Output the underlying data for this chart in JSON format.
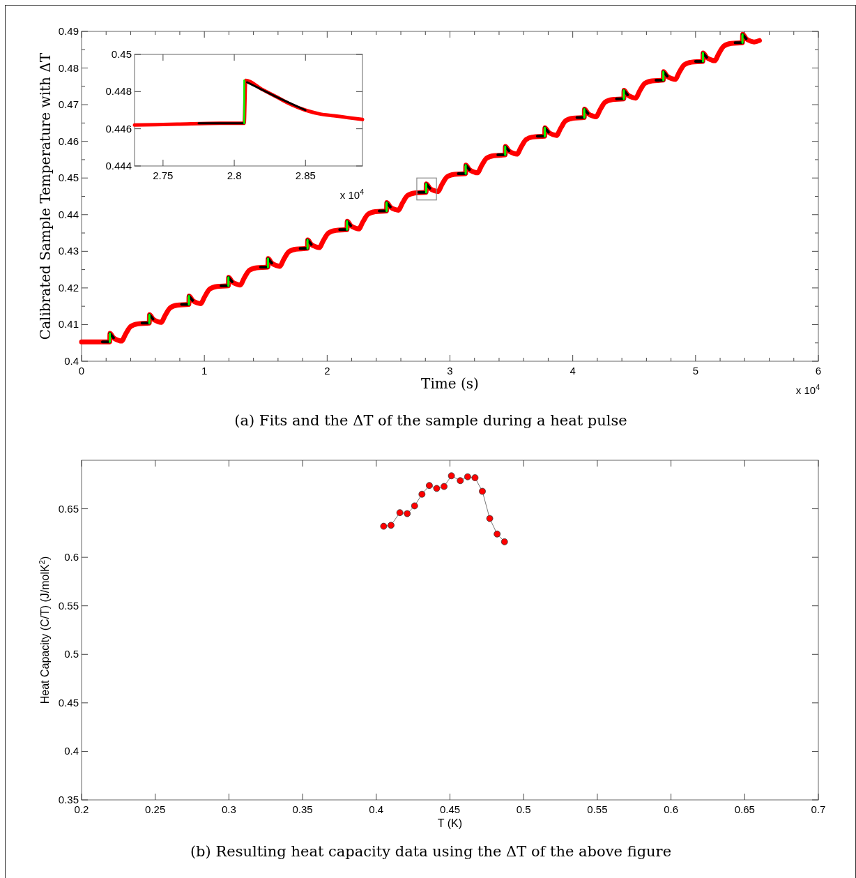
{
  "chart_data": [
    {
      "type": "line",
      "xlabel": "Time (s)",
      "ylabel": "Calibrated Sample Temperature with ΔT",
      "annotations": [
        "x 10$^{4}$",
        "(a) Fits and the ΔT of the sample during a heat pulse"
      ],
      "xlim": [
        0,
        6
      ],
      "ylim": [
        0.4,
        0.49
      ],
      "xticks": [
        0,
        {
          "value": 0.2,
          "label": null
        },
        {
          "value": 0.4,
          "label": null
        },
        {
          "value": 0.6,
          "label": null
        },
        {
          "value": 0.8,
          "label": null
        },
        1,
        {
          "value": 1.2,
          "label": null
        },
        {
          "value": 1.4,
          "label": null
        },
        {
          "value": 1.6,
          "label": null
        },
        {
          "value": 1.8,
          "label": null
        },
        2,
        {
          "value": 2.2,
          "label": null
        },
        {
          "value": 2.4,
          "label": null
        },
        {
          "value": 2.6,
          "label": null
        },
        {
          "value": 2.8,
          "label": null
        },
        3,
        {
          "value": 3.2,
          "label": null
        },
        {
          "value": 3.4,
          "label": null
        },
        {
          "value": 3.6,
          "label": null
        },
        {
          "value": 3.8,
          "label": null
        },
        4,
        {
          "value": 4.2,
          "label": null
        },
        {
          "value": 4.4,
          "label": null
        },
        {
          "value": 4.6,
          "label": null
        },
        {
          "value": 4.8,
          "label": null
        },
        5,
        {
          "value": 5.2,
          "label": null
        },
        {
          "value": 5.4,
          "label": null
        },
        {
          "value": 5.6,
          "label": null
        },
        {
          "value": 5.8,
          "label": null
        },
        6
      ],
      "yticks": [
        0.4,
        {
          "value": 0.405,
          "label": null
        },
        0.41,
        {
          "value": 0.415,
          "label": null
        },
        0.42,
        {
          "value": 0.425,
          "label": null
        },
        0.43,
        {
          "value": 0.435,
          "label": null
        },
        0.44,
        {
          "value": 0.445,
          "label": null
        },
        0.45,
        {
          "value": 0.455,
          "label": null
        },
        0.46,
        {
          "value": 0.465,
          "label": null
        },
        0.47,
        {
          "value": 0.475,
          "label": null
        },
        0.48,
        {
          "value": 0.485,
          "label": null
        },
        0.49
      ],
      "series": [
        {
          "color": "#ff0000",
          "x": [
            0,
            0.23,
            0.231,
            0.26,
            0.3,
            0.325,
            0.36,
            0.4,
            0.46,
            0.552,
            0.553,
            0.582,
            0.622,
            0.647,
            0.682,
            0.722,
            0.782,
            0.874,
            0.875,
            0.904,
            0.944,
            0.969,
            1.004,
            1.044,
            1.104,
            1.196,
            1.197,
            1.226,
            1.266,
            1.291,
            1.326,
            1.366,
            1.426,
            1.518,
            1.519,
            1.548,
            1.588,
            1.613,
            1.648,
            1.688,
            1.748,
            1.84,
            1.841,
            1.87,
            1.91,
            1.935,
            1.97,
            2.01,
            2.07,
            2.162,
            2.163,
            2.192,
            2.232,
            2.257,
            2.292,
            2.332,
            2.392,
            2.484,
            2.485,
            2.514,
            2.554,
            2.579,
            2.614,
            2.654,
            2.714,
            2.806,
            2.807,
            2.836,
            2.876,
            2.901,
            2.936,
            2.976,
            3.036,
            3.128,
            3.129,
            3.158,
            3.198,
            3.223,
            3.258,
            3.298,
            3.358,
            3.45,
            3.451,
            3.48,
            3.52,
            3.545,
            3.58,
            3.62,
            3.68,
            3.772,
            3.773,
            3.802,
            3.842,
            3.867,
            3.902,
            3.942,
            4.002,
            4.094,
            4.095,
            4.124,
            4.164,
            4.189,
            4.224,
            4.264,
            4.324,
            4.416,
            4.417,
            4.446,
            4.486,
            4.511,
            4.546,
            4.586,
            4.646,
            4.738,
            4.739,
            4.768,
            4.808,
            4.833,
            4.868,
            4.908,
            4.968,
            5.06,
            5.061,
            5.09,
            5.13,
            5.155,
            5.19,
            5.23,
            5.29,
            5.382,
            5.383,
            5.412,
            5.452,
            5.477,
            5.52
          ],
          "values": [
            0.4053,
            0.4053,
            0.4076,
            0.4064,
            0.4057,
            0.4055,
            0.4075,
            0.4095,
            0.4102,
            0.4104,
            0.4127,
            0.4115,
            0.4108,
            0.4106,
            0.4126,
            0.4146,
            0.4153,
            0.4155,
            0.4178,
            0.4166,
            0.4159,
            0.4157,
            0.4177,
            0.4197,
            0.4204,
            0.4206,
            0.4229,
            0.4217,
            0.421,
            0.4208,
            0.4228,
            0.4248,
            0.4255,
            0.4257,
            0.428,
            0.4268,
            0.4261,
            0.4259,
            0.4279,
            0.4299,
            0.4306,
            0.4308,
            0.4331,
            0.4319,
            0.4312,
            0.431,
            0.433,
            0.435,
            0.4357,
            0.4359,
            0.4382,
            0.437,
            0.4363,
            0.4361,
            0.4381,
            0.4401,
            0.4408,
            0.441,
            0.4433,
            0.4421,
            0.4414,
            0.4412,
            0.4432,
            0.4452,
            0.4459,
            0.4461,
            0.4484,
            0.4472,
            0.4465,
            0.4463,
            0.4483,
            0.4503,
            0.451,
            0.4512,
            0.4535,
            0.4523,
            0.4516,
            0.4514,
            0.4534,
            0.4554,
            0.4561,
            0.4563,
            0.4586,
            0.4574,
            0.4567,
            0.4565,
            0.4585,
            0.4605,
            0.4612,
            0.4614,
            0.4637,
            0.4625,
            0.4618,
            0.4616,
            0.4636,
            0.4656,
            0.4663,
            0.4665,
            0.4688,
            0.4676,
            0.4669,
            0.4667,
            0.4687,
            0.4707,
            0.4714,
            0.4716,
            0.4739,
            0.4727,
            0.472,
            0.4718,
            0.4738,
            0.4758,
            0.4765,
            0.4767,
            0.479,
            0.4778,
            0.4771,
            0.4769,
            0.4789,
            0.4809,
            0.4816,
            0.4818,
            0.4841,
            0.4829,
            0.4822,
            0.482,
            0.484,
            0.486,
            0.4867,
            0.4869,
            0.4892,
            0.488,
            0.4873,
            0.4871,
            0.4875
          ]
        },
        {
          "color": "#000000",
          "x": [
            0.17,
            0.23,
            null,
            0.23,
            0.26,
            null,
            0.492,
            0.552,
            null,
            0.552,
            0.582,
            null,
            0.814,
            0.874,
            null,
            0.874,
            0.904,
            null,
            1.136,
            1.196,
            null,
            1.196,
            1.226,
            null,
            1.458,
            1.518,
            null,
            1.518,
            1.548,
            null,
            1.78,
            1.84,
            null,
            1.84,
            1.87,
            null,
            2.102,
            2.162,
            null,
            2.162,
            2.192,
            null,
            2.424,
            2.484,
            null,
            2.484,
            2.514,
            null,
            2.746,
            2.806,
            null,
            2.806,
            2.836,
            null,
            3.068,
            3.128,
            null,
            3.128,
            3.158,
            null,
            3.39,
            3.45,
            null,
            3.45,
            3.48,
            null,
            3.712,
            3.772,
            null,
            3.772,
            3.802,
            null,
            4.034,
            4.094,
            null,
            4.094,
            4.124,
            null,
            4.356,
            4.416,
            null,
            4.416,
            4.446,
            null,
            4.678,
            4.738,
            null,
            4.738,
            4.768,
            null,
            5.0,
            5.06,
            null,
            5.06,
            5.09,
            null,
            5.322,
            5.382,
            null,
            5.382,
            5.412
          ],
          "values": [
            0.4053,
            0.4053,
            null,
            0.4076,
            0.4064,
            null,
            0.4104,
            0.4104,
            null,
            0.4127,
            0.4115,
            null,
            0.4155,
            0.4155,
            null,
            0.4178,
            0.4166,
            null,
            0.4206,
            0.4206,
            null,
            0.4229,
            0.4217,
            null,
            0.4257,
            0.4257,
            null,
            0.428,
            0.4268,
            null,
            0.4308,
            0.4308,
            null,
            0.4331,
            0.4319,
            null,
            0.4359,
            0.4359,
            null,
            0.4382,
            0.437,
            null,
            0.441,
            0.441,
            null,
            0.4433,
            0.4421,
            null,
            0.4461,
            0.4461,
            null,
            0.4484,
            0.4472,
            null,
            0.4512,
            0.4512,
            null,
            0.4535,
            0.4523,
            null,
            0.4563,
            0.4563,
            null,
            0.4586,
            0.4574,
            null,
            0.4614,
            0.4614,
            null,
            0.4637,
            0.4625,
            null,
            0.4665,
            0.4665,
            null,
            0.4688,
            0.4676,
            null,
            0.4716,
            0.4716,
            null,
            0.4739,
            0.4727,
            null,
            0.4767,
            0.4767,
            null,
            0.479,
            0.4778,
            null,
            0.4818,
            0.4818,
            null,
            0.4841,
            0.4829,
            null,
            0.4869,
            0.4869,
            null,
            0.4892,
            0.488
          ]
        },
        {
          "color": "#00ff00",
          "x": [
            0.23,
            0.23,
            null,
            0.552,
            0.552,
            null,
            0.874,
            0.874,
            null,
            1.196,
            1.196,
            null,
            1.518,
            1.518,
            null,
            1.84,
            1.84,
            null,
            2.162,
            2.162,
            null,
            2.484,
            2.484,
            null,
            2.806,
            2.806,
            null,
            3.128,
            3.128,
            null,
            3.45,
            3.45,
            null,
            3.772,
            3.772,
            null,
            4.094,
            4.094,
            null,
            4.416,
            4.416,
            null,
            4.738,
            4.738,
            null,
            5.06,
            5.06,
            null,
            5.382,
            5.382
          ],
          "values": [
            0.4053,
            0.4076,
            null,
            0.4104,
            0.4127,
            null,
            0.4155,
            0.4178,
            null,
            0.4206,
            0.4229,
            null,
            0.4257,
            0.428,
            null,
            0.4308,
            0.4331,
            null,
            0.4359,
            0.4382,
            null,
            0.441,
            0.4433,
            null,
            0.4461,
            0.4484,
            null,
            0.4512,
            0.4535,
            null,
            0.4563,
            0.4586,
            null,
            0.4614,
            0.4637,
            null,
            0.4665,
            0.4688,
            null,
            0.4716,
            0.4739,
            null,
            0.4767,
            0.479,
            null,
            0.4818,
            0.4841,
            null,
            0.4869,
            0.4892
          ]
        }
      ]
    },
    {
      "type": "line",
      "annotations": [
        "x 10$^{4}$"
      ],
      "xlim": [
        2.73,
        2.89
      ],
      "ylim": [
        0.444,
        0.45
      ],
      "xticks": [
        2.75,
        2.8,
        2.85
      ],
      "yticks": [
        0.444,
        0.446,
        0.448,
        0.45
      ],
      "series": [
        {
          "color": "#ff0000",
          "x": [
            2.73,
            2.76,
            2.79,
            2.807,
            2.808,
            2.82,
            2.83,
            2.84,
            2.85,
            2.86,
            2.87,
            2.88,
            2.89
          ],
          "values": [
            0.4462,
            0.44625,
            0.4463,
            0.4463,
            0.4486,
            0.4481,
            0.4477,
            0.4473,
            0.447,
            0.4468,
            0.4467,
            0.4466,
            0.4465
          ]
        },
        {
          "color": "#000000",
          "x": [
            2.775,
            2.807,
            null,
            2.809,
            2.83,
            2.85
          ],
          "values": [
            0.4463,
            0.4463,
            null,
            0.4485,
            0.4477,
            0.447
          ]
        },
        {
          "color": "#00ff00",
          "x": [
            2.807,
            2.807
          ],
          "values": [
            0.4463,
            0.4486
          ]
        }
      ]
    },
    {
      "type": "line",
      "xlabel": "T (K)",
      "ylabel": "Heat Capacity (C/T) (J/molK$^{2}$)",
      "marker": "circle",
      "annotations": [
        "(b) Resulting heat capacity data using the ΔT of the above figure"
      ],
      "xlim": [
        0.2,
        0.7
      ],
      "ylim": [
        0.35,
        0.7
      ],
      "xticks": [
        0.2,
        0.25,
        0.3,
        0.35,
        0.4,
        0.45,
        0.5,
        0.55,
        0.6,
        0.65,
        0.7
      ],
      "yticks": [
        0.35,
        0.4,
        0.45,
        0.5,
        0.55,
        0.6,
        0.65
      ],
      "series": [
        {
          "color": "#ff0000",
          "x": [
            0.405,
            0.41,
            0.416,
            0.421,
            0.426,
            0.431,
            0.436,
            0.441,
            0.446,
            0.451,
            0.457,
            0.462,
            0.467,
            0.472,
            0.477,
            0.482,
            0.487
          ],
          "values": [
            0.632,
            0.633,
            0.646,
            0.645,
            0.653,
            0.665,
            0.674,
            0.671,
            0.673,
            0.684,
            0.679,
            0.683,
            0.682,
            0.668,
            0.64,
            0.624,
            0.616
          ]
        }
      ]
    }
  ]
}
